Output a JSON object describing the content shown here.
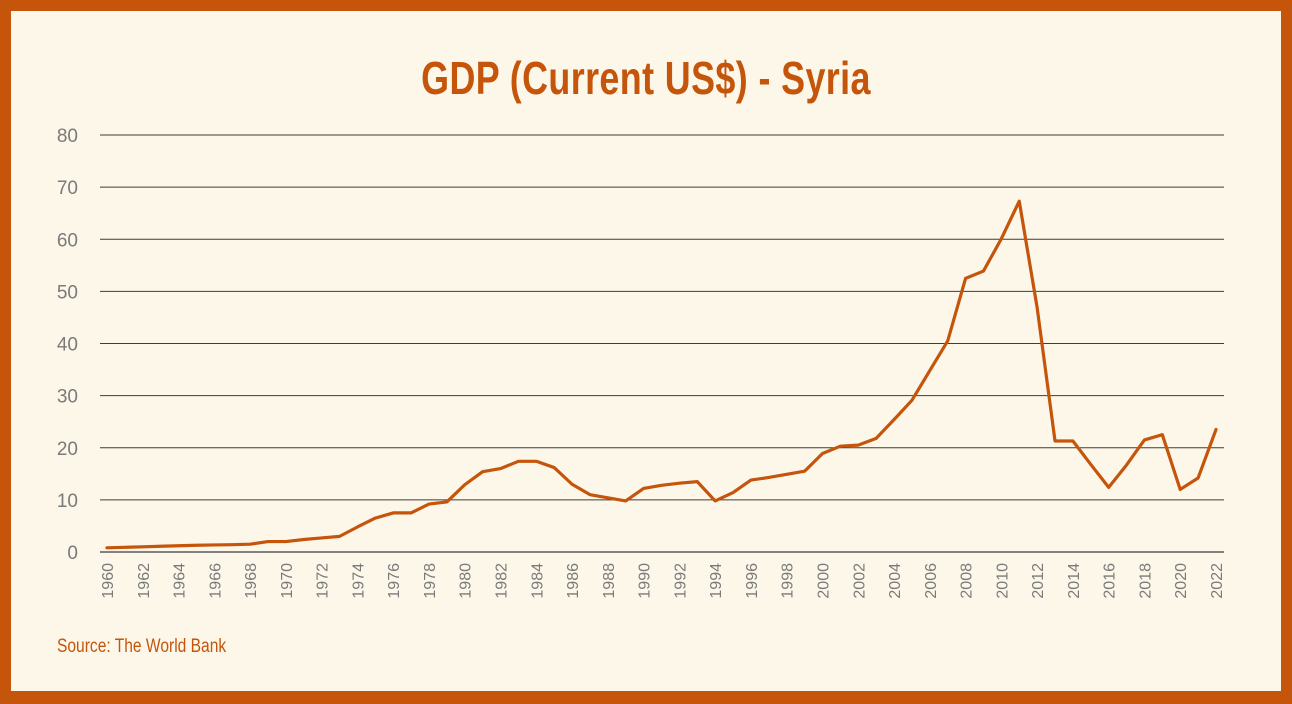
{
  "chart_data": {
    "type": "line",
    "title": "GDP (Current US$) - Syria",
    "source": "Source: The World Bank",
    "xlabel": "",
    "ylabel": "",
    "ylim": [
      0,
      80
    ],
    "yticks": [
      "0",
      "10",
      "20",
      "30",
      "40",
      "50",
      "60",
      "70",
      "80"
    ],
    "grid": true,
    "line_color": "#c4550b",
    "series": [
      {
        "name": "GDP (Current US$)",
        "x": [
          1960,
          1961,
          1962,
          1963,
          1964,
          1965,
          1966,
          1967,
          1968,
          1969,
          1970,
          1971,
          1972,
          1973,
          1974,
          1975,
          1976,
          1977,
          1978,
          1979,
          1980,
          1981,
          1982,
          1983,
          1984,
          1985,
          1986,
          1987,
          1988,
          1989,
          1990,
          1991,
          1992,
          1993,
          1994,
          1995,
          1996,
          1997,
          1998,
          1999,
          2000,
          2001,
          2002,
          2003,
          2004,
          2005,
          2006,
          2007,
          2008,
          2009,
          2010,
          2011,
          2012,
          2013,
          2014,
          2015,
          2016,
          2017,
          2018,
          2019,
          2020,
          2021,
          2022
        ],
        "values": [
          0.8,
          0.9,
          1.0,
          1.1,
          1.2,
          1.3,
          1.35,
          1.4,
          1.5,
          2.0,
          2.0,
          2.4,
          2.7,
          3.0,
          4.8,
          6.5,
          7.5,
          7.5,
          9.2,
          9.6,
          12.9,
          15.4,
          16.0,
          17.4,
          17.4,
          16.2,
          13.0,
          11.0,
          10.4,
          9.8,
          12.2,
          12.8,
          13.2,
          13.5,
          9.8,
          11.4,
          13.8,
          14.3,
          14.9,
          15.5,
          18.9,
          20.3,
          20.5,
          21.8,
          25.4,
          29.1,
          34.8,
          40.5,
          52.5,
          53.9,
          60.1,
          67.3,
          46.9,
          21.3,
          21.3,
          16.8,
          12.4,
          16.7,
          21.5,
          22.5,
          12.0,
          14.2,
          23.5
        ]
      }
    ],
    "xtick_labels": [
      "1960",
      "1962",
      "1964",
      "1966",
      "1968",
      "1970",
      "1972",
      "1974",
      "1976",
      "1978",
      "1980",
      "1982",
      "1984",
      "1986",
      "1988",
      "1990",
      "1992",
      "1994",
      "1996",
      "1998",
      "2000",
      "2002",
      "2004",
      "2006",
      "2008",
      "2010",
      "2012",
      "2014",
      "2016",
      "2018",
      "2020",
      "2022"
    ]
  }
}
